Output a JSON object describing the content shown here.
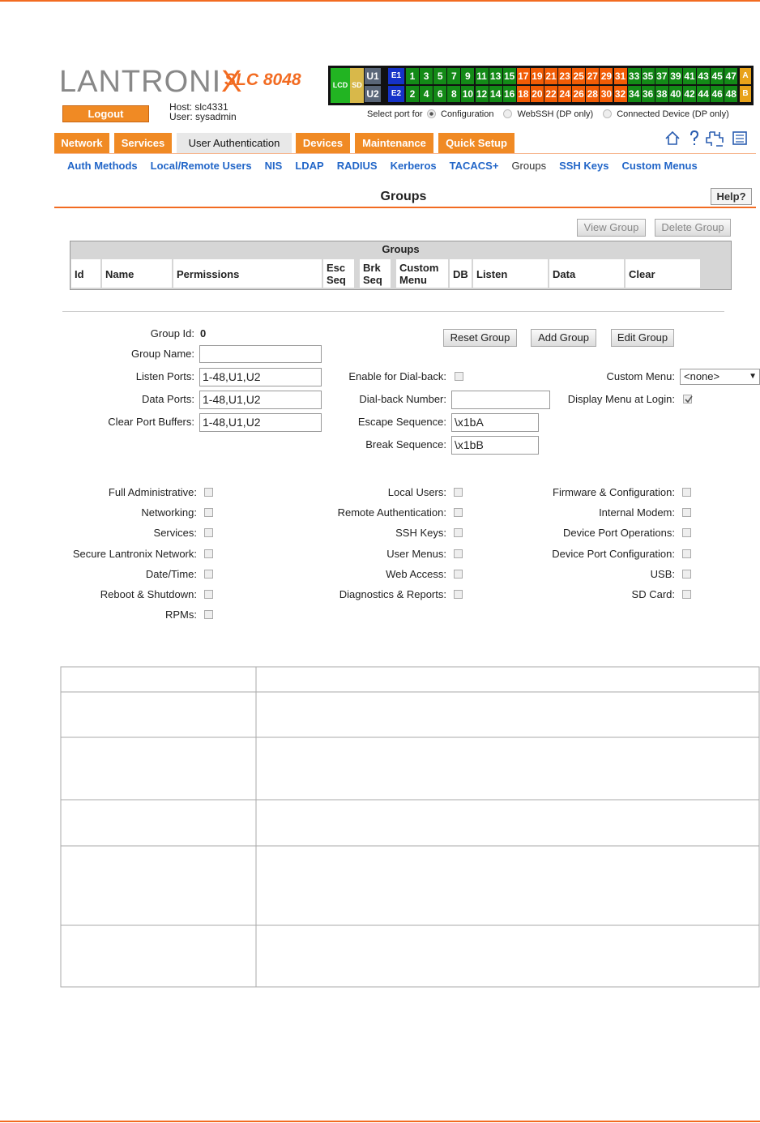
{
  "header": {
    "logo": "LANTRONIX",
    "model": "SLC 8048",
    "logout": "Logout",
    "host": "Host: slc4331",
    "user": "User: sysadmin"
  },
  "port_panel": {
    "lcd": "LCD",
    "sd": "SD",
    "u1": "U1",
    "u2": "U2",
    "e1": "E1",
    "e2": "E2",
    "a": "A",
    "b": "B",
    "top_ports": [
      {
        "label": "1",
        "color": "#138a17"
      },
      {
        "label": "3",
        "color": "#138a17"
      },
      {
        "label": "5",
        "color": "#138a17"
      },
      {
        "label": "7",
        "color": "#138a17"
      },
      {
        "label": "9",
        "color": "#138a17"
      },
      {
        "label": "11",
        "color": "#138a17"
      },
      {
        "label": "13",
        "color": "#138a17"
      },
      {
        "label": "15",
        "color": "#138a17"
      },
      {
        "label": "17",
        "color": "#f25c05"
      },
      {
        "label": "19",
        "color": "#f25c05"
      },
      {
        "label": "21",
        "color": "#f25c05"
      },
      {
        "label": "23",
        "color": "#f25c05"
      },
      {
        "label": "25",
        "color": "#f25c05"
      },
      {
        "label": "27",
        "color": "#f25c05"
      },
      {
        "label": "29",
        "color": "#f25c05"
      },
      {
        "label": "31",
        "color": "#f25c05"
      },
      {
        "label": "33",
        "color": "#138a17"
      },
      {
        "label": "35",
        "color": "#138a17"
      },
      {
        "label": "37",
        "color": "#138a17"
      },
      {
        "label": "39",
        "color": "#138a17"
      },
      {
        "label": "41",
        "color": "#138a17"
      },
      {
        "label": "43",
        "color": "#138a17"
      },
      {
        "label": "45",
        "color": "#138a17"
      },
      {
        "label": "47",
        "color": "#138a17"
      }
    ],
    "bottom_ports": [
      {
        "label": "2",
        "color": "#138a17"
      },
      {
        "label": "4",
        "color": "#138a17"
      },
      {
        "label": "6",
        "color": "#138a17"
      },
      {
        "label": "8",
        "color": "#138a17"
      },
      {
        "label": "10",
        "color": "#138a17"
      },
      {
        "label": "12",
        "color": "#138a17"
      },
      {
        "label": "14",
        "color": "#138a17"
      },
      {
        "label": "16",
        "color": "#138a17"
      },
      {
        "label": "18",
        "color": "#f25c05"
      },
      {
        "label": "20",
        "color": "#f25c05"
      },
      {
        "label": "22",
        "color": "#f25c05"
      },
      {
        "label": "24",
        "color": "#f25c05"
      },
      {
        "label": "26",
        "color": "#f25c05"
      },
      {
        "label": "28",
        "color": "#f25c05"
      },
      {
        "label": "30",
        "color": "#f25c05"
      },
      {
        "label": "32",
        "color": "#f25c05"
      },
      {
        "label": "34",
        "color": "#138a17"
      },
      {
        "label": "36",
        "color": "#138a17"
      },
      {
        "label": "38",
        "color": "#138a17"
      },
      {
        "label": "40",
        "color": "#138a17"
      },
      {
        "label": "42",
        "color": "#138a17"
      },
      {
        "label": "44",
        "color": "#138a17"
      },
      {
        "label": "46",
        "color": "#138a17"
      },
      {
        "label": "48",
        "color": "#138a17"
      }
    ],
    "select_label": "Select port for",
    "options": [
      {
        "label": "Configuration",
        "checked": true
      },
      {
        "label": "WebSSH (DP only)",
        "checked": false
      },
      {
        "label": "Connected Device (DP only)",
        "checked": false
      }
    ]
  },
  "tabs": [
    {
      "label": "Network",
      "active": false
    },
    {
      "label": "Services",
      "active": false
    },
    {
      "label": "User Authentication",
      "active": true
    },
    {
      "label": "Devices",
      "active": false
    },
    {
      "label": "Maintenance",
      "active": false
    },
    {
      "label": "Quick Setup",
      "active": false
    }
  ],
  "subnav": [
    {
      "label": "Auth Methods",
      "active": false
    },
    {
      "label": "Local/Remote Users",
      "active": false
    },
    {
      "label": "NIS",
      "active": false
    },
    {
      "label": "LDAP",
      "active": false
    },
    {
      "label": "RADIUS",
      "active": false
    },
    {
      "label": "Kerberos",
      "active": false
    },
    {
      "label": "TACACS+",
      "active": false
    },
    {
      "label": "Groups",
      "active": true
    },
    {
      "label": "SSH Keys",
      "active": false
    },
    {
      "label": "Custom Menus",
      "active": false
    }
  ],
  "page_title": "Groups",
  "help": "Help?",
  "list_buttons": [
    "View Group",
    "Delete Group"
  ],
  "table": {
    "caption": "Groups",
    "headers": [
      "Id",
      "Name",
      "Permissions",
      "Esc Seq",
      "Brk Seq",
      "Custom Menu",
      "DB",
      "Listen",
      "Data",
      "Clear"
    ]
  },
  "form": {
    "group_id": {
      "label": "Group Id:",
      "value": "0"
    },
    "group_name": {
      "label": "Group Name:"
    },
    "listen_ports": {
      "label": "Listen Ports:",
      "value": "1-48,U1,U2"
    },
    "data_ports": {
      "label": "Data Ports:",
      "value": "1-48,U1,U2"
    },
    "clear_port_buffers": {
      "label": "Clear Port Buffers:",
      "value": "1-48,U1,U2"
    },
    "enable_dialback": {
      "label": "Enable for Dial-back:",
      "checked": false
    },
    "dialback_number": {
      "label": "Dial-back Number:"
    },
    "escape_sequence": {
      "label": "Escape Sequence:",
      "value": "\\x1bA"
    },
    "break_sequence": {
      "label": "Break Sequence:",
      "value": "\\x1bB"
    },
    "custom_menu": {
      "label": "Custom Menu:",
      "value": "<none>"
    },
    "display_menu": {
      "label": "Display Menu at Login:",
      "checked": true
    },
    "buttons": [
      "Reset Group",
      "Add Group",
      "Edit Group"
    ]
  },
  "permissions": [
    [
      {
        "label": "Full Administrative:",
        "checked": false
      },
      {
        "label": "Networking:",
        "checked": false
      },
      {
        "label": "Services:",
        "checked": false
      },
      {
        "label": "Secure Lantronix Network:",
        "checked": false
      },
      {
        "label": "Date/Time:",
        "checked": false
      },
      {
        "label": "Reboot & Shutdown:",
        "checked": false
      },
      {
        "label": "RPMs:",
        "checked": false
      }
    ],
    [
      {
        "label": "Local Users:",
        "checked": false
      },
      {
        "label": "Remote Authentication:",
        "checked": false
      },
      {
        "label": "SSH Keys:",
        "checked": false
      },
      {
        "label": "User Menus:",
        "checked": false
      },
      {
        "label": "Web Access:",
        "checked": false
      },
      {
        "label": "Diagnostics & Reports:",
        "checked": false
      }
    ],
    [
      {
        "label": "Firmware & Configuration:",
        "checked": false
      },
      {
        "label": "Internal Modem:",
        "checked": false
      },
      {
        "label": "Device Port Operations:",
        "checked": false
      },
      {
        "label": "Device Port Configuration:",
        "checked": false
      },
      {
        "label": "USB:",
        "checked": false
      },
      {
        "label": "SD Card:",
        "checked": false
      }
    ]
  ]
}
